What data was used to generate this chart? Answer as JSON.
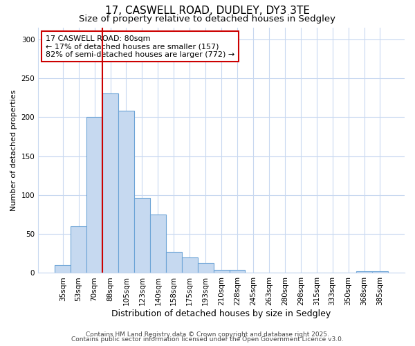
{
  "title": "17, CASWELL ROAD, DUDLEY, DY3 3TE",
  "subtitle": "Size of property relative to detached houses in Sedgley",
  "xlabel": "Distribution of detached houses by size in Sedgley",
  "ylabel": "Number of detached properties",
  "categories": [
    "35sqm",
    "53sqm",
    "70sqm",
    "88sqm",
    "105sqm",
    "123sqm",
    "140sqm",
    "158sqm",
    "175sqm",
    "193sqm",
    "210sqm",
    "228sqm",
    "245sqm",
    "263sqm",
    "280sqm",
    "298sqm",
    "315sqm",
    "333sqm",
    "350sqm",
    "368sqm",
    "385sqm"
  ],
  "values": [
    10,
    60,
    200,
    231,
    208,
    96,
    75,
    27,
    20,
    13,
    4,
    4,
    0,
    0,
    0,
    0,
    0,
    0,
    0,
    2,
    2
  ],
  "bar_color": "#c6d9f0",
  "bar_edge_color": "#6ba3d6",
  "vline_color": "#cc0000",
  "annotation_text": "17 CASWELL ROAD: 80sqm\n← 17% of detached houses are smaller (157)\n82% of semi-detached houses are larger (772) →",
  "annotation_box_facecolor": "#ffffff",
  "annotation_box_edgecolor": "#cc0000",
  "ylim": [
    0,
    315
  ],
  "yticks": [
    0,
    50,
    100,
    150,
    200,
    250,
    300
  ],
  "background_color": "#ffffff",
  "grid_color": "#c8d8f0",
  "footer1": "Contains HM Land Registry data © Crown copyright and database right 2025.",
  "footer2": "Contains public sector information licensed under the Open Government Licence v3.0.",
  "title_fontsize": 11,
  "subtitle_fontsize": 9.5,
  "xlabel_fontsize": 9,
  "ylabel_fontsize": 8,
  "tick_fontsize": 7.5,
  "annotation_fontsize": 8,
  "footer_fontsize": 6.5
}
